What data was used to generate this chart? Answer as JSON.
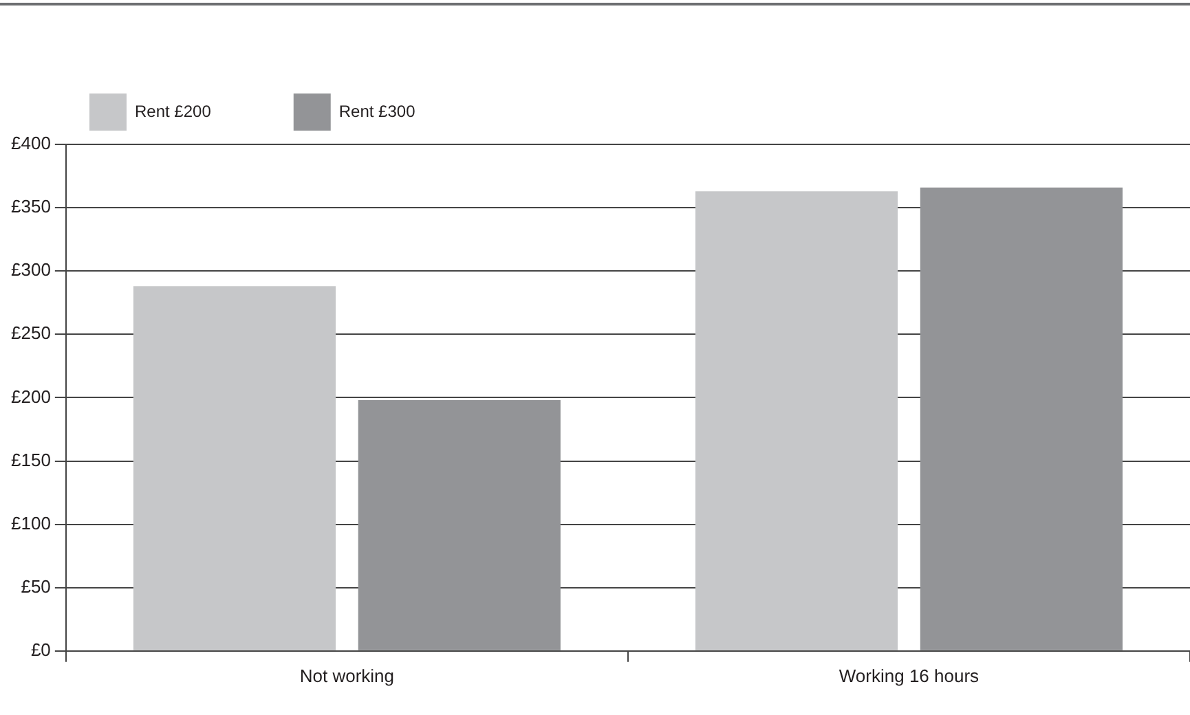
{
  "chart_data": {
    "type": "bar",
    "categories": [
      "Not working",
      "Working 16 hours"
    ],
    "series": [
      {
        "name": "Rent £200",
        "color": "#c6c7c9",
        "values": [
          288,
          363
        ]
      },
      {
        "name": "Rent £300",
        "color": "#939497",
        "values": [
          198,
          366
        ]
      }
    ],
    "ylim": [
      0,
      400
    ],
    "yticks": [
      {
        "value": 0,
        "label": "£0"
      },
      {
        "value": 50,
        "label": "£50"
      },
      {
        "value": 100,
        "label": "£100"
      },
      {
        "value": 150,
        "label": "£150"
      },
      {
        "value": 200,
        "label": "£200"
      },
      {
        "value": 250,
        "label": "£250"
      },
      {
        "value": 300,
        "label": "£300"
      },
      {
        "value": 350,
        "label": "£350"
      },
      {
        "value": 400,
        "label": "£400"
      }
    ],
    "grid": "y",
    "legend": "top left"
  }
}
